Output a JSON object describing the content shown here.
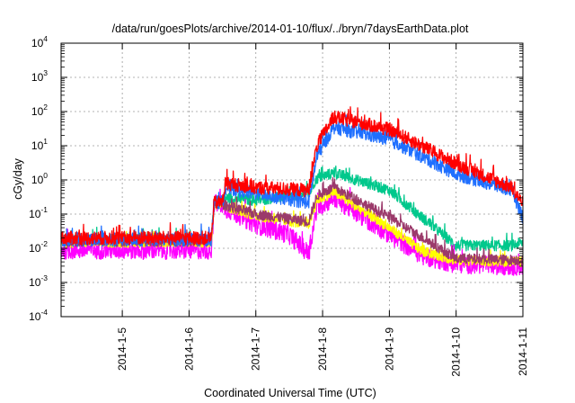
{
  "chart_data": {
    "type": "line",
    "title": "/data/run/goesPlots/archive/2014-01-10/flux/../bryn/7daysEarthData.plot",
    "xlabel": "Coordinated Universal Time (UTC)",
    "ylabel": "cGy/day",
    "y_scale": "log",
    "ylim": [
      0.0001,
      10000
    ],
    "xlim": [
      "2014-01-04 02:00",
      "2014-01-11 00:00"
    ],
    "grid": true,
    "legend": "none",
    "x_ticks": [
      "2014-1-5",
      "2014-1-6",
      "2014-1-7",
      "2014-1-8",
      "2014-1-9",
      "2014-1-10",
      "2014-1-11"
    ],
    "y_ticks": [
      {
        "base": "10",
        "exp": "-4",
        "value": 0.0001
      },
      {
        "base": "10",
        "exp": "-3",
        "value": 0.001
      },
      {
        "base": "10",
        "exp": "-2",
        "value": 0.01
      },
      {
        "base": "10",
        "exp": "-1",
        "value": 0.1
      },
      {
        "base": "10",
        "exp": "0",
        "value": 1
      },
      {
        "base": "10",
        "exp": "1",
        "value": 10
      },
      {
        "base": "10",
        "exp": "2",
        "value": 100
      },
      {
        "base": "10",
        "exp": "3",
        "value": 1000
      },
      {
        "base": "10",
        "exp": "4",
        "value": 10000
      }
    ],
    "series": [
      {
        "color": "#00c88c",
        "noise": 0.16,
        "points": [
          [
            "2014-01-04 02:00",
            0.018
          ],
          [
            "2014-01-06 08:00",
            0.018
          ],
          [
            "2014-01-06 09:00",
            0.22
          ],
          [
            "2014-01-06 12:00",
            0.22
          ],
          [
            "2014-01-06 13:00",
            0.3
          ],
          [
            "2014-01-07 00:00",
            0.25
          ],
          [
            "2014-01-07 19:00",
            0.4
          ],
          [
            "2014-01-07 22:00",
            1.1
          ],
          [
            "2014-01-08 04:00",
            1.6
          ],
          [
            "2014-01-09 00:00",
            0.5
          ],
          [
            "2014-01-10 00:00",
            0.012
          ],
          [
            "2014-01-10 20:00",
            0.012
          ],
          [
            "2014-01-11 00:00",
            0.015
          ]
        ]
      },
      {
        "color": "#ff00ff",
        "noise": 0.28,
        "points": [
          [
            "2014-01-04 02:00",
            0.009
          ],
          [
            "2014-01-06 08:00",
            0.009
          ],
          [
            "2014-01-06 09:00",
            0.2
          ],
          [
            "2014-01-06 12:00",
            0.2
          ],
          [
            "2014-01-06 13:00",
            0.15
          ],
          [
            "2014-01-07 00:00",
            0.05
          ],
          [
            "2014-01-07 12:00",
            0.025
          ],
          [
            "2014-01-07 19:00",
            0.007
          ],
          [
            "2014-01-07 22:00",
            0.15
          ],
          [
            "2014-01-08 04:00",
            0.3
          ],
          [
            "2014-01-09 00:00",
            0.025
          ],
          [
            "2014-01-09 12:00",
            0.006
          ],
          [
            "2014-01-10 00:00",
            0.0035
          ],
          [
            "2014-01-11 00:00",
            0.003
          ]
        ]
      },
      {
        "color": "#ffff00",
        "noise": 0.15,
        "points": [
          [
            "2014-01-04 02:00",
            0.015
          ],
          [
            "2014-01-06 08:00",
            0.015
          ],
          [
            "2014-01-06 09:00",
            0.2
          ],
          [
            "2014-01-06 12:00",
            0.2
          ],
          [
            "2014-01-06 13:00",
            0.17
          ],
          [
            "2014-01-07 00:00",
            0.09
          ],
          [
            "2014-01-07 19:00",
            0.05
          ],
          [
            "2014-01-07 22:00",
            0.25
          ],
          [
            "2014-01-08 04:00",
            0.45
          ],
          [
            "2014-01-09 00:00",
            0.04
          ],
          [
            "2014-01-09 12:00",
            0.008
          ],
          [
            "2014-01-10 00:00",
            0.0045
          ],
          [
            "2014-01-11 00:00",
            0.004
          ]
        ]
      },
      {
        "color": "#9b3a6b",
        "noise": 0.15,
        "points": [
          [
            "2014-01-04 02:00",
            0.016
          ],
          [
            "2014-01-06 08:00",
            0.016
          ],
          [
            "2014-01-06 09:00",
            0.2
          ],
          [
            "2014-01-06 12:00",
            0.2
          ],
          [
            "2014-01-06 13:00",
            0.18
          ],
          [
            "2014-01-07 00:00",
            0.1
          ],
          [
            "2014-01-07 19:00",
            0.06
          ],
          [
            "2014-01-07 22:00",
            0.35
          ],
          [
            "2014-01-08 04:00",
            0.6
          ],
          [
            "2014-01-09 00:00",
            0.08
          ],
          [
            "2014-01-09 12:00",
            0.02
          ],
          [
            "2014-01-10 00:00",
            0.005
          ],
          [
            "2014-01-11 00:00",
            0.0045
          ]
        ]
      },
      {
        "color": "#1f6fff",
        "noise": 0.2,
        "points": [
          [
            "2014-01-04 02:00",
            0.018
          ],
          [
            "2014-01-06 08:00",
            0.018
          ],
          [
            "2014-01-06 09:00",
            0.22
          ],
          [
            "2014-01-06 12:00",
            0.22
          ],
          [
            "2014-01-06 13:00",
            0.6
          ],
          [
            "2014-01-07 00:00",
            0.4
          ],
          [
            "2014-01-07 19:00",
            0.22
          ],
          [
            "2014-01-07 22:00",
            5
          ],
          [
            "2014-01-08 04:00",
            35
          ],
          [
            "2014-01-09 00:00",
            15
          ],
          [
            "2014-01-10 00:00",
            1.5
          ],
          [
            "2014-01-10 20:00",
            0.5
          ],
          [
            "2014-01-11 00:00",
            0.08
          ]
        ]
      },
      {
        "color": "#ff0000",
        "noise": 0.2,
        "points": [
          [
            "2014-01-04 02:00",
            0.02
          ],
          [
            "2014-01-06 08:00",
            0.02
          ],
          [
            "2014-01-06 09:00",
            0.22
          ],
          [
            "2014-01-06 12:00",
            0.22
          ],
          [
            "2014-01-06 13:00",
            0.8
          ],
          [
            "2014-01-07 00:00",
            0.6
          ],
          [
            "2014-01-07 19:00",
            0.5
          ],
          [
            "2014-01-07 22:00",
            10
          ],
          [
            "2014-01-08 04:00",
            70
          ],
          [
            "2014-01-09 00:00",
            30
          ],
          [
            "2014-01-10 00:00",
            3
          ],
          [
            "2014-01-10 20:00",
            0.6
          ],
          [
            "2014-01-11 00:00",
            0.2
          ]
        ]
      }
    ]
  }
}
